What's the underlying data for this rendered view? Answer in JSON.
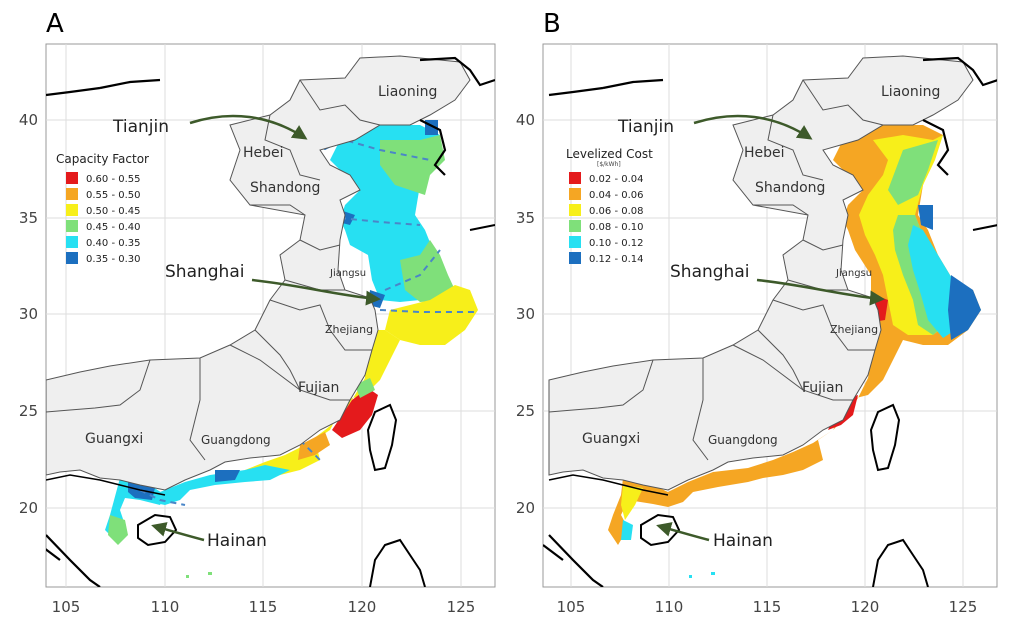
{
  "panels": [
    {
      "letter": "A",
      "legend": {
        "title": "Capacity Factor",
        "subtitle": "",
        "items": [
          {
            "label": "0.60 - 0.55",
            "color": "#e41a1c"
          },
          {
            "label": "0.55 - 0.50",
            "color": "#f5a623"
          },
          {
            "label": "0.50 - 0.45",
            "color": "#f7ef1a"
          },
          {
            "label": "0.45 - 0.40",
            "color": "#7fe07a"
          },
          {
            "label": "0.40 - 0.35",
            "color": "#27e0f2"
          },
          {
            "label": "0.35 - 0.30",
            "color": "#1c6fbf"
          }
        ]
      }
    },
    {
      "letter": "B",
      "legend": {
        "title": "Levelized Cost",
        "subtitle": "[$/kWh]",
        "items": [
          {
            "label": "0.02 - 0.04",
            "color": "#e41a1c"
          },
          {
            "label": "0.04 - 0.06",
            "color": "#f5a623"
          },
          {
            "label": "0.06 - 0.08",
            "color": "#f7ef1a"
          },
          {
            "label": "0.08 - 0.10",
            "color": "#7fe07a"
          },
          {
            "label": "0.10 - 0.12",
            "color": "#27e0f2"
          },
          {
            "label": "0.12 - 0.14",
            "color": "#1c6fbf"
          }
        ]
      }
    }
  ],
  "axes": {
    "x_ticks": [
      "105",
      "110",
      "115",
      "120",
      "125"
    ],
    "y_ticks": [
      "40",
      "35",
      "30",
      "25",
      "20"
    ],
    "x_range": [
      104,
      127
    ],
    "y_range": [
      16,
      43
    ]
  },
  "provinces": {
    "liaoning": "Liaoning",
    "hebei": "Hebei",
    "shandong": "Shandong",
    "jiangsu": "Jiangsu",
    "zhejiang": "Zhejiang",
    "fujian": "Fujian",
    "guangdong": "Guangdong",
    "guangxi": "Guangxi"
  },
  "cities": {
    "tianjin": "Tianjin",
    "shanghai": "Shanghai",
    "hainan": "Hainan"
  }
}
